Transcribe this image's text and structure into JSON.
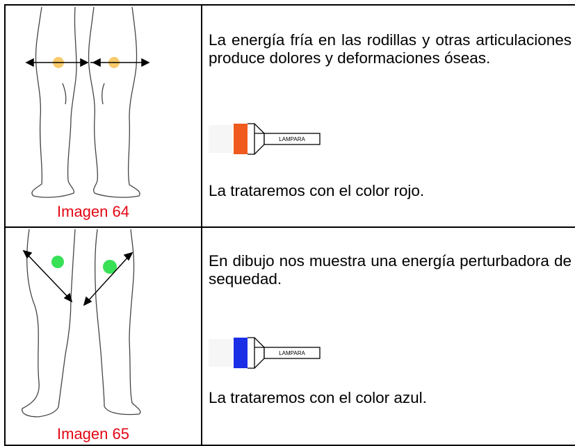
{
  "table": {
    "rows": [
      {
        "caption": "Imagen 64",
        "text": "La energía fría en las rodillas y otras articulaciones produce dolores y deformaciones óseas.",
        "lamp_label": "LAMPARA",
        "treatment": "La trataremos con el color rojo."
      },
      {
        "caption": "Imagen 65",
        "text": "En dibujo nos muestra una energía perturbadora de sequedad.",
        "lamp_label": "LAMPARA",
        "treatment": "La trataremos con el color azul."
      }
    ]
  }
}
